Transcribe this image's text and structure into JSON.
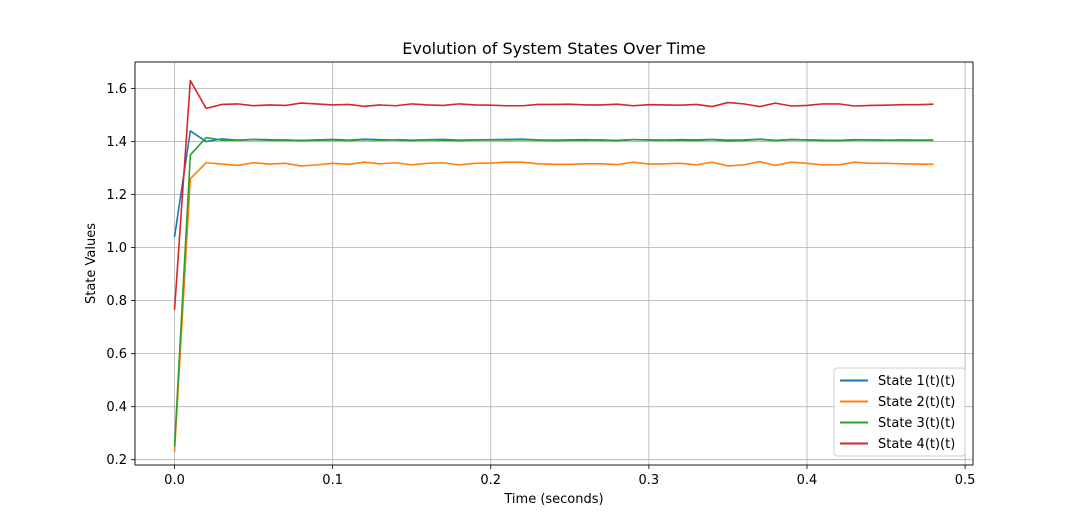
{
  "chart_data": {
    "type": "line",
    "title": "Evolution of System States Over Time",
    "xlabel": "Time (seconds)",
    "ylabel": "State Values",
    "xlim": [
      -0.025,
      0.505
    ],
    "ylim": [
      0.18,
      1.7
    ],
    "xticks": [
      0.0,
      0.1,
      0.2,
      0.3,
      0.4,
      0.5
    ],
    "xtick_labels": [
      "0.0",
      "0.1",
      "0.2",
      "0.3",
      "0.4",
      "0.5"
    ],
    "yticks": [
      0.2,
      0.4,
      0.6,
      0.8,
      1.0,
      1.2,
      1.4,
      1.6
    ],
    "ytick_labels": [
      "0.2",
      "0.4",
      "0.6",
      "0.8",
      "1.0",
      "1.2",
      "1.4",
      "1.6"
    ],
    "grid": true,
    "legend_position": "lower-right",
    "x": [
      0.0,
      0.01,
      0.02,
      0.03,
      0.04,
      0.05,
      0.06,
      0.07,
      0.08,
      0.09,
      0.1,
      0.11,
      0.12,
      0.13,
      0.14,
      0.15,
      0.16,
      0.17,
      0.18,
      0.19,
      0.2,
      0.21,
      0.22,
      0.23,
      0.24,
      0.25,
      0.26,
      0.27,
      0.28,
      0.29,
      0.3,
      0.31,
      0.32,
      0.33,
      0.34,
      0.35,
      0.36,
      0.37,
      0.38,
      0.39,
      0.4,
      0.41,
      0.42,
      0.43,
      0.44,
      0.45,
      0.46,
      0.47,
      0.48
    ],
    "series": [
      {
        "name": "State 1(t)(t)",
        "color": "#1f77b4",
        "values": [
          1.04,
          1.44,
          1.4,
          1.41,
          1.405,
          1.408,
          1.407,
          1.405,
          1.404,
          1.406,
          1.408,
          1.405,
          1.409,
          1.407,
          1.406,
          1.404,
          1.407,
          1.408,
          1.405,
          1.406,
          1.407,
          1.408,
          1.409,
          1.406,
          1.405,
          1.406,
          1.407,
          1.405,
          1.404,
          1.407,
          1.406,
          1.405,
          1.407,
          1.406,
          1.408,
          1.405,
          1.406,
          1.409,
          1.404,
          1.407,
          1.406,
          1.405,
          1.404,
          1.407,
          1.406,
          1.405,
          1.406,
          1.405,
          1.405
        ]
      },
      {
        "name": "State 2(t)(t)",
        "color": "#ff7f0e",
        "values": [
          0.23,
          1.26,
          1.32,
          1.315,
          1.31,
          1.32,
          1.315,
          1.318,
          1.308,
          1.312,
          1.318,
          1.314,
          1.322,
          1.316,
          1.32,
          1.312,
          1.318,
          1.32,
          1.312,
          1.318,
          1.319,
          1.322,
          1.322,
          1.316,
          1.314,
          1.314,
          1.316,
          1.316,
          1.313,
          1.322,
          1.315,
          1.316,
          1.318,
          1.312,
          1.322,
          1.308,
          1.312,
          1.324,
          1.31,
          1.322,
          1.318,
          1.312,
          1.312,
          1.322,
          1.318,
          1.318,
          1.316,
          1.315,
          1.314
        ]
      },
      {
        "name": "State 3(t)(t)",
        "color": "#2ca02c",
        "values": [
          0.25,
          1.35,
          1.415,
          1.405,
          1.405,
          1.407,
          1.405,
          1.406,
          1.404,
          1.405,
          1.406,
          1.404,
          1.407,
          1.405,
          1.407,
          1.405,
          1.406,
          1.405,
          1.404,
          1.406,
          1.406,
          1.406,
          1.407,
          1.405,
          1.404,
          1.405,
          1.405,
          1.406,
          1.404,
          1.407,
          1.406,
          1.405,
          1.405,
          1.404,
          1.407,
          1.402,
          1.404,
          1.408,
          1.404,
          1.408,
          1.406,
          1.404,
          1.404,
          1.406,
          1.406,
          1.405,
          1.405,
          1.405,
          1.405
        ]
      },
      {
        "name": "State 4(t)(t)",
        "color": "#d62728",
        "values": [
          0.765,
          1.63,
          1.525,
          1.54,
          1.542,
          1.535,
          1.538,
          1.536,
          1.545,
          1.542,
          1.538,
          1.54,
          1.533,
          1.538,
          1.535,
          1.542,
          1.538,
          1.536,
          1.542,
          1.538,
          1.537,
          1.535,
          1.535,
          1.54,
          1.54,
          1.541,
          1.538,
          1.538,
          1.541,
          1.535,
          1.539,
          1.538,
          1.537,
          1.54,
          1.532,
          1.547,
          1.542,
          1.532,
          1.545,
          1.534,
          1.536,
          1.542,
          1.542,
          1.534,
          1.536,
          1.537,
          1.539,
          1.539,
          1.541
        ]
      }
    ]
  }
}
